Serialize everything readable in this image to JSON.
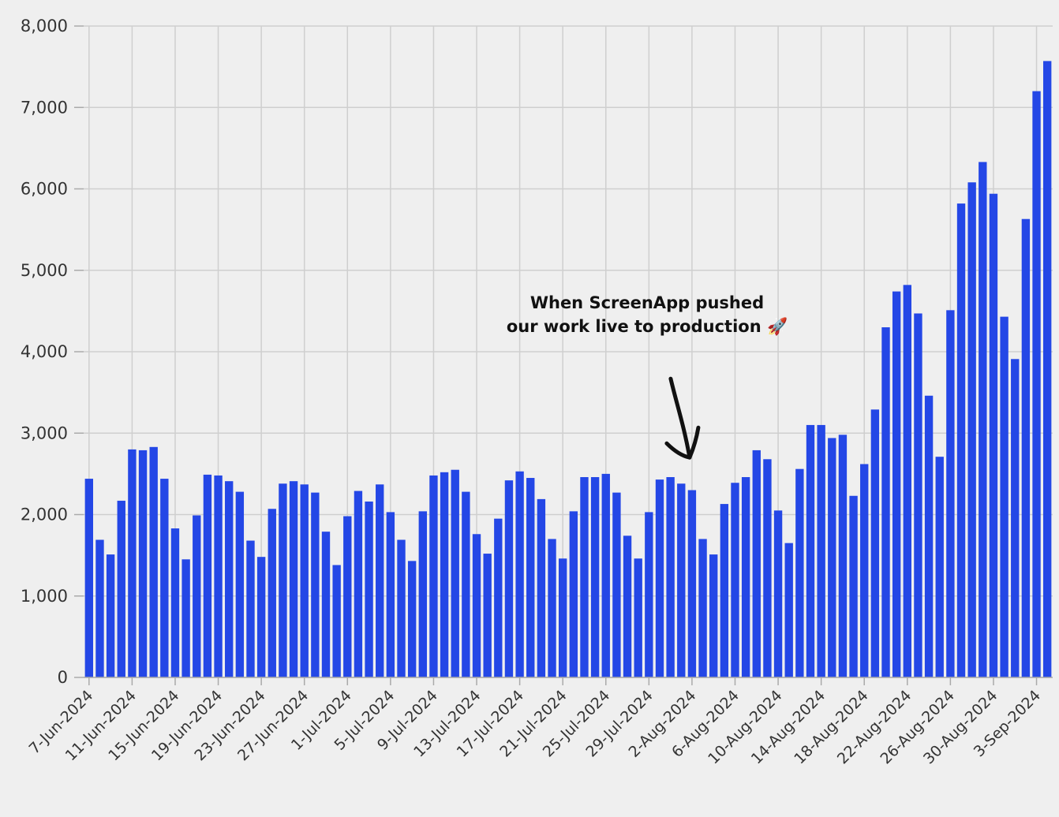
{
  "chart_data": {
    "type": "bar",
    "title": "",
    "xlabel": "",
    "ylabel": "",
    "ylim": [
      0,
      8000
    ],
    "yticks": [
      "0",
      "1,000",
      "2,000",
      "3,000",
      "4,000",
      "5,000",
      "6,000",
      "7,000",
      "8,000"
    ],
    "grid": true,
    "bar_color": "#2447e6",
    "start_date": "2024-06-07",
    "x_tick_labels": [
      "7-Jun-2024",
      "11-Jun-2024",
      "15-Jun-2024",
      "19-Jun-2024",
      "23-Jun-2024",
      "27-Jun-2024",
      "1-Jul-2024",
      "5-Jul-2024",
      "9-Jul-2024",
      "13-Jul-2024",
      "17-Jul-2024",
      "21-Jul-2024",
      "25-Jul-2024",
      "29-Jul-2024",
      "2-Aug-2024",
      "6-Aug-2024",
      "10-Aug-2024",
      "14-Aug-2024",
      "18-Aug-2024",
      "22-Aug-2024",
      "26-Aug-2024",
      "30-Aug-2024",
      "3-Sep-2024"
    ],
    "values": [
      2440,
      1690,
      1510,
      2170,
      2800,
      2790,
      2830,
      2440,
      1830,
      1450,
      1990,
      2490,
      2480,
      2410,
      2280,
      1680,
      1480,
      2070,
      2380,
      2410,
      2370,
      2270,
      1790,
      1380,
      1980,
      2290,
      2160,
      2370,
      2030,
      1690,
      1430,
      2040,
      2480,
      2520,
      2550,
      2280,
      1760,
      1520,
      1950,
      2420,
      2530,
      2450,
      2190,
      1700,
      1460,
      2040,
      2460,
      2460,
      2500,
      2270,
      1740,
      1460,
      2030,
      2430,
      2460,
      2380,
      2300,
      1700,
      1510,
      2130,
      2390,
      2460,
      2790,
      2680,
      2050,
      1650,
      2560,
      3100,
      3100,
      2940,
      2980,
      2230,
      2620,
      3290,
      4300,
      4740,
      4820,
      4470,
      3460,
      2710,
      4510,
      5820,
      6080,
      6330,
      5940,
      4430,
      3910,
      5630,
      7200,
      7570
    ],
    "annotation": {
      "line1": "When ScreenApp pushed",
      "line2": "our work live to production 🚀",
      "target_date": "2024-08-02"
    }
  }
}
